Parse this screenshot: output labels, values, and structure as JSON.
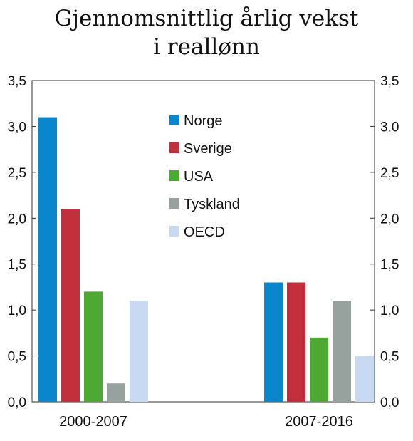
{
  "chart_data": {
    "type": "bar",
    "title": [
      "Gjennomsnittlig årlig vekst",
      "i reallønn"
    ],
    "categories": [
      "2000-2007",
      "2007-2016"
    ],
    "series": [
      {
        "name": "Norge",
        "color": "#0a86cc",
        "values": [
          3.1,
          1.3
        ]
      },
      {
        "name": "Sverige",
        "color": "#c2303d",
        "values": [
          2.1,
          1.3
        ]
      },
      {
        "name": "USA",
        "color": "#4ea934",
        "values": [
          1.2,
          0.7
        ]
      },
      {
        "name": "Tyskland",
        "color": "#97a29f",
        "values": [
          0.2,
          1.1
        ]
      },
      {
        "name": "OECD",
        "color": "#c8d9f2",
        "values": [
          1.1,
          0.5
        ]
      }
    ],
    "ylim": [
      0,
      3.5
    ],
    "yticks": [
      "0,0",
      "0,5",
      "1,0",
      "1,5",
      "2,0",
      "2,5",
      "3,0",
      "3,5"
    ],
    "grid": false,
    "legend_position": "top-center"
  }
}
